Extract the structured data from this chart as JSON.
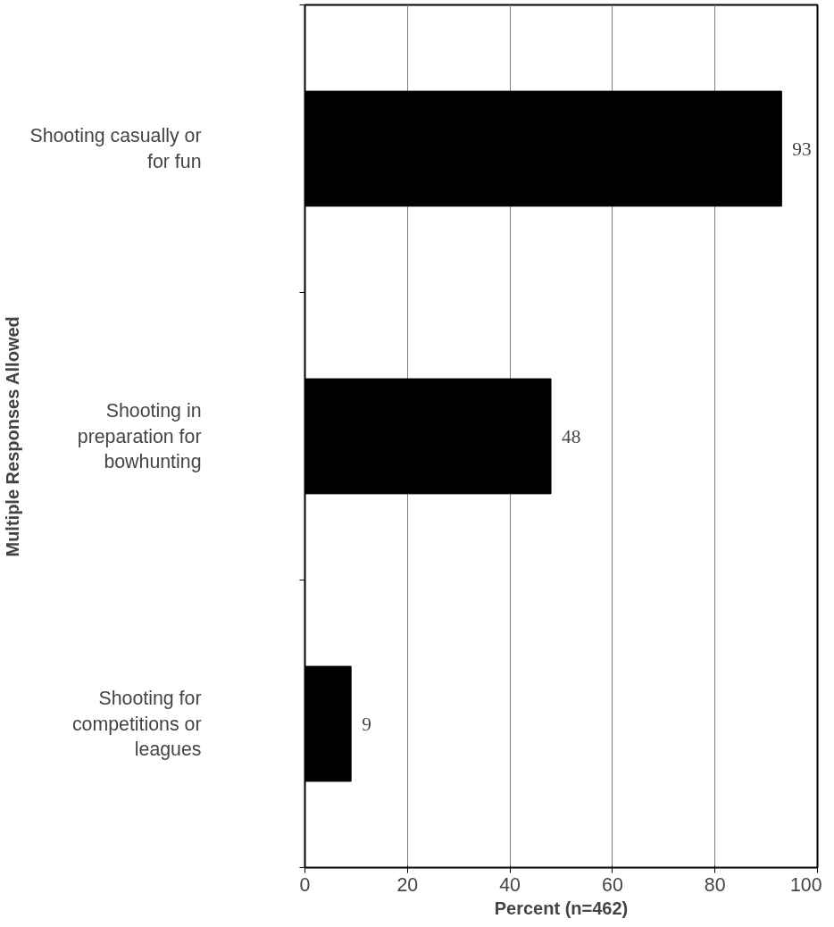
{
  "chart_data": {
    "type": "bar",
    "orientation": "horizontal",
    "categories": [
      "Shooting casually or for fun",
      "Shooting in preparation for bowhunting",
      "Shooting for competitions or leagues"
    ],
    "values": [
      93,
      48,
      9
    ],
    "color": "#000000",
    "xlim": [
      0,
      100
    ],
    "xticks": [
      0,
      20,
      40,
      60,
      80,
      100
    ],
    "grid": "x",
    "data_labels": true,
    "xlabel": "Percent (n=462)",
    "ylabel": "Multiple Responses Allowed"
  }
}
